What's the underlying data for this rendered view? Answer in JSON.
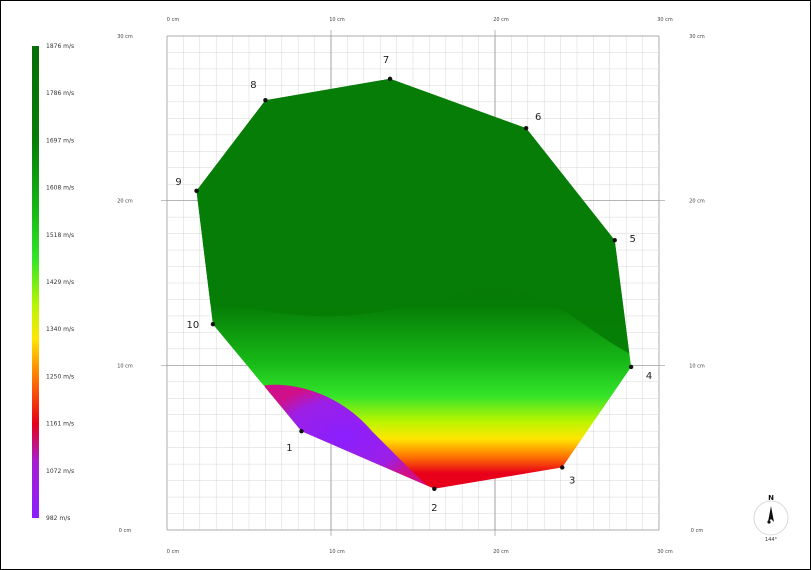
{
  "chart_data": {
    "type": "heatmap",
    "title": "",
    "unit": "m/s",
    "color_scale": {
      "min": 982,
      "max": 1876,
      "labels": [
        "1876 m/s",
        "1786 m/s",
        "1697 m/s",
        "1608 m/s",
        "1518 m/s",
        "1429 m/s",
        "1340 m/s",
        "1250 m/s",
        "1161 m/s",
        "1072 m/s",
        "982 m/s"
      ],
      "stops": [
        {
          "value": 982,
          "color": "#8a1fff"
        },
        {
          "value": 1072,
          "color": "#a61fd0"
        },
        {
          "value": 1161,
          "color": "#e8001a"
        },
        {
          "value": 1250,
          "color": "#ff7a00"
        },
        {
          "value": 1340,
          "color": "#ffe600"
        },
        {
          "value": 1429,
          "color": "#b9f500"
        },
        {
          "value": 1518,
          "color": "#33e42a"
        },
        {
          "value": 1608,
          "color": "#17b817"
        },
        {
          "value": 1697,
          "color": "#0a9a0a"
        },
        {
          "value": 1786,
          "color": "#067d06"
        },
        {
          "value": 1876,
          "color": "#066e06"
        }
      ]
    },
    "x_axis": {
      "ticks": [
        "0 cm",
        "10 cm",
        "20 cm",
        "30 cm"
      ],
      "range": [
        0,
        30
      ]
    },
    "y_axis": {
      "ticks": [
        "0 cm",
        "10 cm",
        "20 cm",
        "30 cm"
      ],
      "range": [
        0,
        30
      ]
    },
    "grid": true,
    "sensors": [
      {
        "label": "1",
        "x": 8.2,
        "y": 6.0
      },
      {
        "label": "2",
        "x": 16.3,
        "y": 2.5
      },
      {
        "label": "3",
        "x": 24.1,
        "y": 3.8
      },
      {
        "label": "4",
        "x": 28.3,
        "y": 9.9
      },
      {
        "label": "5",
        "x": 27.3,
        "y": 17.6
      },
      {
        "label": "6",
        "x": 21.9,
        "y": 24.4
      },
      {
        "label": "7",
        "x": 13.6,
        "y": 27.4
      },
      {
        "label": "8",
        "x": 6.0,
        "y": 26.1
      },
      {
        "label": "9",
        "x": 1.8,
        "y": 20.6
      },
      {
        "label": "10",
        "x": 2.8,
        "y": 12.5
      }
    ],
    "compass": {
      "label": "N",
      "bearing": "144°"
    }
  }
}
